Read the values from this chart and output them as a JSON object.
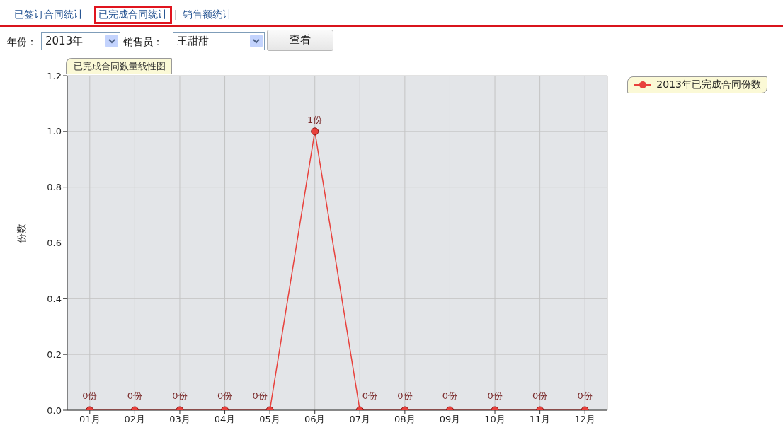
{
  "chart_data": {
    "type": "line",
    "title": "已完成合同数量线性图",
    "ylabel": "份数",
    "categories": [
      "01月",
      "02月",
      "03月",
      "04月",
      "05月",
      "06月",
      "07月",
      "08月",
      "09月",
      "10月",
      "11月",
      "12月"
    ],
    "series": [
      {
        "name": "2013年已完成合同份数",
        "color": "#e8413c",
        "values": [
          0,
          0,
          0,
          0,
          0,
          1,
          0,
          0,
          0,
          0,
          0,
          0
        ],
        "value_labels": [
          "0份",
          "0份",
          "0份",
          "0份",
          "0份",
          "1份",
          "0份",
          "0份",
          "0份",
          "0份",
          "0份",
          "0份"
        ]
      }
    ],
    "ylim": [
      0,
      1.2
    ],
    "yticks": [
      {
        "value": 0,
        "label": "0.0"
      },
      {
        "value": 0.2,
        "label": "0.2"
      },
      {
        "value": 0.4,
        "label": "0.4"
      },
      {
        "value": 0.6,
        "label": "0.6"
      },
      {
        "value": 0.8,
        "label": "0.8"
      },
      {
        "value": 1,
        "label": "1.0"
      },
      {
        "value": 1.2,
        "label": "1.2"
      }
    ],
    "grid": true,
    "legend": "top right",
    "marker": "circle",
    "line_style": "solid",
    "annotations": [
      "已签订合同统计",
      "已完成合同统计",
      "销售额统计",
      "年份：",
      "2013年",
      "销售员：",
      "王甜甜",
      "查看"
    ]
  }
}
